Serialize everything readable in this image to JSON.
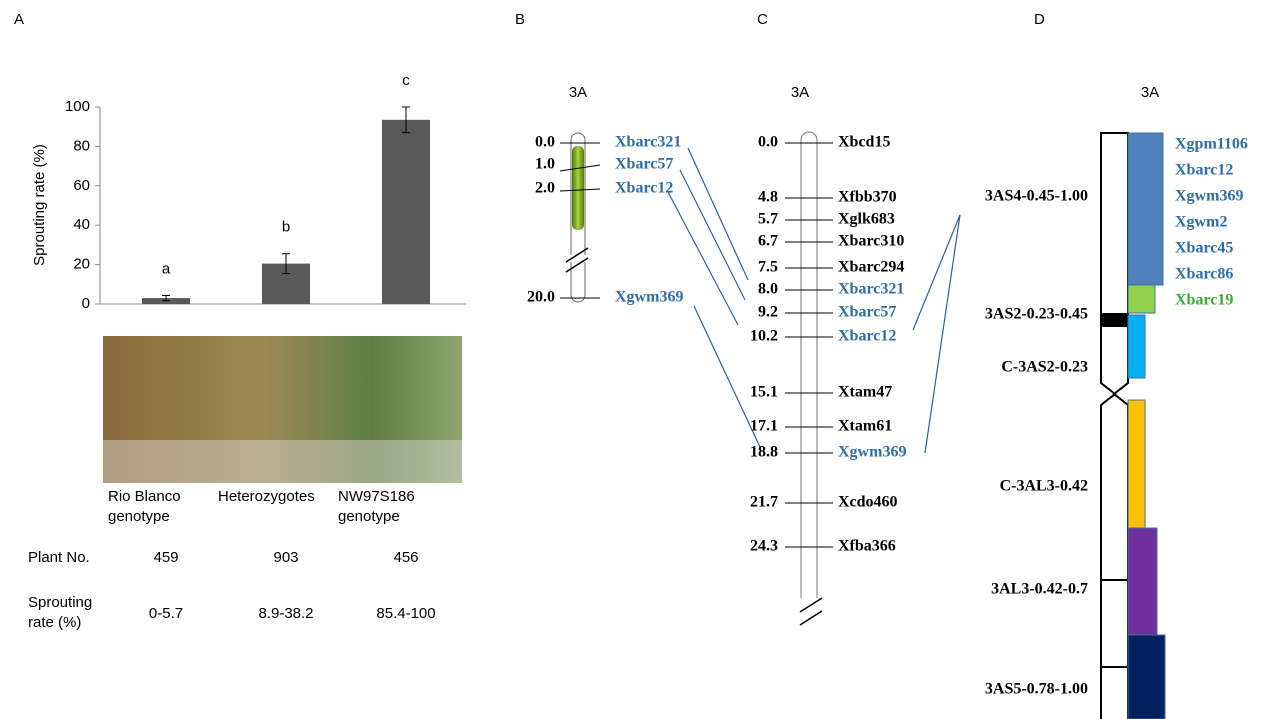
{
  "chart_data": {
    "type": "bar",
    "panel": "A",
    "ylabel": "Sprouting rate (%)",
    "categories": [
      "Rio Blanco genotype",
      "Heterozygotes",
      "NW97S186 genotype"
    ],
    "values": [
      3,
      20.5,
      93.5
    ],
    "errors": [
      1.3,
      5,
      6.5
    ],
    "letters": [
      "a",
      "b",
      "c"
    ],
    "color": "#595959",
    "ylim": [
      0,
      100
    ],
    "yticks": [
      0,
      20,
      40,
      60,
      80,
      100
    ]
  },
  "table": {
    "rows": [
      [
        "Plant No.",
        "459",
        "903",
        "456"
      ],
      [
        "Sprouting rate (%)",
        "0-5.7",
        "8.9-38.2",
        "85.4-100"
      ]
    ]
  },
  "panel_b": {
    "label": "B",
    "title": "3A",
    "markers": [
      {
        "pos": "0.0",
        "name": "Xbarc321"
      },
      {
        "pos": "1.0",
        "name": "Xbarc57"
      },
      {
        "pos": "2.0",
        "name": "Xbarc12"
      },
      {
        "pos": "20.0",
        "name": "Xgwm369"
      }
    ]
  },
  "panel_c": {
    "label": "C",
    "title": "3A",
    "markers": [
      {
        "pos": "0.0",
        "name": "Xbcd15",
        "hl": false
      },
      {
        "pos": "4.8",
        "name": "Xfbb370",
        "hl": false
      },
      {
        "pos": "5.7",
        "name": "Xglk683",
        "hl": false
      },
      {
        "pos": "6.7",
        "name": "Xbarc310",
        "hl": false
      },
      {
        "pos": "7.5",
        "name": "Xbarc294",
        "hl": false
      },
      {
        "pos": "8.0",
        "name": "Xbarc321",
        "hl": true
      },
      {
        "pos": "9.2",
        "name": "Xbarc57",
        "hl": true
      },
      {
        "pos": "10.2",
        "name": "Xbarc12",
        "hl": true
      },
      {
        "pos": "15.1",
        "name": "Xtam47",
        "hl": false
      },
      {
        "pos": "17.1",
        "name": "Xtam61",
        "hl": false
      },
      {
        "pos": "18.8",
        "name": "Xgwm369",
        "hl": true
      },
      {
        "pos": "21.7",
        "name": "Xcdo460",
        "hl": false
      },
      {
        "pos": "24.3",
        "name": "Xfba366",
        "hl": false
      }
    ]
  },
  "panel_d": {
    "label": "D",
    "title": "3A",
    "bins": [
      "3AS4-0.45-1.00",
      "3AS2-0.23-0.45",
      "C-3AS2-0.23",
      "C-3AL3-0.42",
      "3AL3-0.42-0.7",
      "3AS5-0.78-1.00"
    ],
    "markers": [
      {
        "name": "Xgpm1106",
        "color": "#2e6da4"
      },
      {
        "name": "Xbarc12",
        "color": "#2e6da4"
      },
      {
        "name": "Xgwm369",
        "color": "#2e6da4"
      },
      {
        "name": "Xgwm2",
        "color": "#2e6da4"
      },
      {
        "name": "Xbarc45",
        "color": "#2e6da4"
      },
      {
        "name": "Xbarc86",
        "color": "#2e6da4"
      },
      {
        "name": "Xbarc19",
        "color": "#3aaa35"
      }
    ]
  }
}
